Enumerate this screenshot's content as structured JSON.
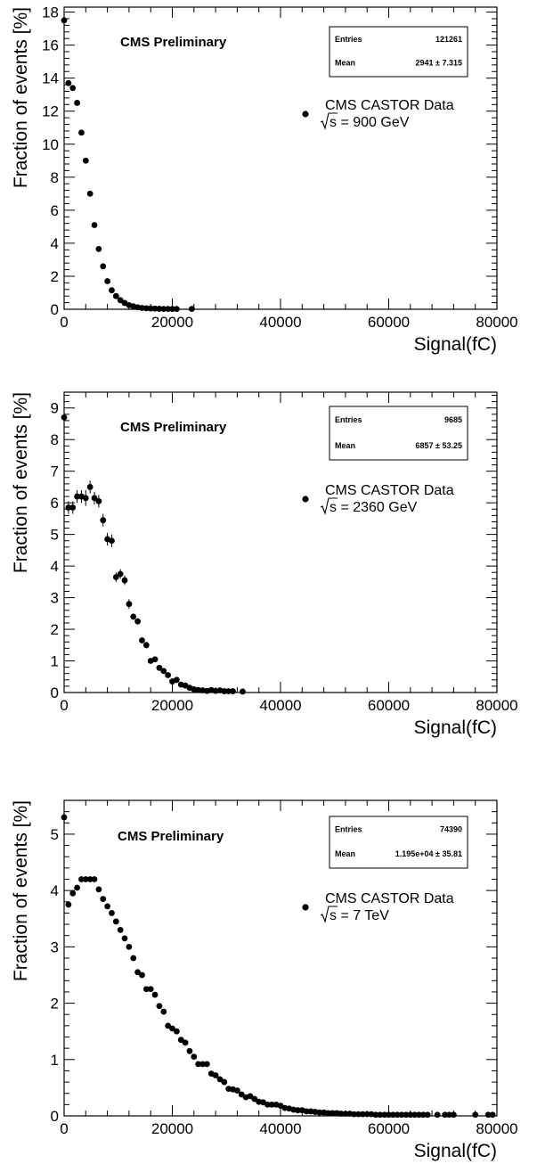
{
  "chart_data": [
    {
      "type": "scatter",
      "annotation": "CMS Preliminary",
      "xlabel": "Signal(fC)",
      "ylabel": "Fraction of events [%]",
      "xlim": [
        0,
        80000
      ],
      "ylim": [
        0,
        18.3
      ],
      "x_ticks": [
        0,
        20000,
        40000,
        60000,
        80000
      ],
      "y_ticks": [
        0,
        2,
        4,
        6,
        8,
        10,
        12,
        14,
        16,
        18
      ],
      "stats": {
        "entries_label": "Entries",
        "entries": "121261",
        "mean_label": "Mean",
        "mean": "2941 ±  7.315"
      },
      "legend": {
        "series_name": "CMS CASTOR Data",
        "energy": "s = 900 GeV",
        "placement": "right"
      },
      "series": [
        {
          "x": [
            0,
            800,
            1600,
            2400,
            3200,
            4000,
            4800,
            5600,
            6400,
            7200,
            8000,
            8800,
            9600,
            10400,
            11200,
            12000,
            12800,
            13600,
            14400,
            15200,
            16000,
            16800,
            17600,
            18400,
            19200,
            20000,
            20800,
            23600
          ],
          "y": [
            17.5,
            13.7,
            13.4,
            12.5,
            10.7,
            9.0,
            7.0,
            5.1,
            3.65,
            2.6,
            1.7,
            1.15,
            0.8,
            0.55,
            0.38,
            0.25,
            0.18,
            0.12,
            0.08,
            0.06,
            0.05,
            0.04,
            0.03,
            0.02,
            0.02,
            0.02,
            0.02,
            0.02
          ]
        }
      ]
    },
    {
      "type": "scatter",
      "annotation": "CMS Preliminary",
      "xlabel": "Signal(fC)",
      "ylabel": "Fraction of events [%]",
      "xlim": [
        0,
        80000
      ],
      "ylim": [
        0,
        9.5
      ],
      "x_ticks": [
        0,
        20000,
        40000,
        60000,
        80000
      ],
      "y_ticks": [
        0,
        1,
        2,
        3,
        4,
        5,
        6,
        7,
        8,
        9
      ],
      "stats": {
        "entries_label": "Entries",
        "entries": "9685",
        "mean_label": "Mean",
        "mean": "6857 ±  53.25"
      },
      "legend": {
        "series_name": "CMS CASTOR Data",
        "energy": "s = 2360 GeV",
        "placement": "right"
      },
      "series": [
        {
          "x": [
            0,
            800,
            1600,
            2400,
            3200,
            4000,
            4800,
            5600,
            6400,
            7200,
            8000,
            8800,
            9600,
            10400,
            11200,
            12000,
            12800,
            13600,
            14400,
            15200,
            16000,
            16800,
            17600,
            18400,
            19200,
            20000,
            20800,
            21600,
            22400,
            23200,
            24000,
            24800,
            25600,
            26400,
            27200,
            28000,
            28800,
            29600,
            30400,
            31200,
            33000
          ],
          "y": [
            8.7,
            5.85,
            5.85,
            6.2,
            6.2,
            6.15,
            6.5,
            6.15,
            6.05,
            5.45,
            4.85,
            4.8,
            3.65,
            3.75,
            3.55,
            2.8,
            2.4,
            2.25,
            1.65,
            1.5,
            1.0,
            1.05,
            0.78,
            0.68,
            0.55,
            0.35,
            0.4,
            0.25,
            0.22,
            0.15,
            0.1,
            0.08,
            0.07,
            0.05,
            0.08,
            0.05,
            0.07,
            0.04,
            0.04,
            0.04,
            0.03
          ],
          "errors": [
            0.3,
            0.2,
            0.2,
            0.2,
            0.2,
            0.25,
            0.2,
            0.2,
            0.2,
            0.2,
            0.2,
            0.2,
            0.15,
            0.15,
            0.15,
            0.15,
            0.1,
            0.1,
            0.1,
            0.1,
            0.08,
            0.08,
            0.06,
            0.06,
            0.05,
            0.05,
            0.05,
            0.04,
            0.04,
            0.04,
            0.03,
            0.03,
            0.03,
            0.03,
            0.03,
            0.03,
            0.03,
            0.02,
            0.02,
            0.02,
            0.02
          ]
        }
      ]
    },
    {
      "type": "scatter",
      "annotation": "CMS Preliminary",
      "xlabel": "Signal(fC)",
      "ylabel": "Fraction of events [%]",
      "xlim": [
        0,
        80000
      ],
      "ylim": [
        0,
        5.6
      ],
      "x_ticks": [
        0,
        20000,
        40000,
        60000,
        80000
      ],
      "y_ticks": [
        0,
        1,
        2,
        3,
        4,
        5
      ],
      "stats": {
        "entries_label": "Entries",
        "entries": "74390",
        "mean_label": "Mean",
        "mean": "1.195e+04 ±  35.81"
      },
      "legend": {
        "series_name": "CMS CASTOR Data",
        "energy": "s = 7 TeV",
        "placement": "right"
      },
      "series": [
        {
          "x": [
            0,
            800,
            1600,
            2400,
            3200,
            4000,
            4800,
            5600,
            6400,
            7200,
            8000,
            8800,
            9600,
            10400,
            11200,
            12000,
            12800,
            13600,
            14400,
            15200,
            16000,
            16800,
            17600,
            18400,
            19200,
            20000,
            20800,
            21600,
            22400,
            23200,
            24000,
            24800,
            25600,
            26400,
            27200,
            28000,
            28800,
            29600,
            30400,
            31200,
            32000,
            32800,
            33600,
            34400,
            35200,
            36000,
            36800,
            37600,
            38400,
            39200,
            40000,
            40800,
            41600,
            42400,
            43200,
            44000,
            44800,
            45600,
            46400,
            47200,
            48000,
            48800,
            49600,
            50400,
            51200,
            52000,
            52800,
            53600,
            54400,
            55200,
            56000,
            56800,
            57600,
            58400,
            59200,
            60000,
            60800,
            61600,
            62400,
            63200,
            64000,
            64800,
            65600,
            66400,
            67200,
            69000,
            70400,
            71200,
            72000,
            76000,
            78400,
            79200
          ],
          "y": [
            5.3,
            3.75,
            3.95,
            4.05,
            4.2,
            4.2,
            4.2,
            4.2,
            4.02,
            3.85,
            3.72,
            3.6,
            3.45,
            3.3,
            3.15,
            3.0,
            2.8,
            2.55,
            2.5,
            2.25,
            2.25,
            2.15,
            1.95,
            1.85,
            1.6,
            1.55,
            1.5,
            1.35,
            1.3,
            1.15,
            1.05,
            0.92,
            0.92,
            0.92,
            0.75,
            0.72,
            0.65,
            0.6,
            0.48,
            0.47,
            0.45,
            0.38,
            0.33,
            0.35,
            0.3,
            0.25,
            0.24,
            0.2,
            0.2,
            0.2,
            0.18,
            0.14,
            0.13,
            0.11,
            0.1,
            0.1,
            0.08,
            0.08,
            0.07,
            0.06,
            0.06,
            0.05,
            0.05,
            0.05,
            0.04,
            0.04,
            0.04,
            0.03,
            0.03,
            0.03,
            0.03,
            0.03,
            0.02,
            0.02,
            0.02,
            0.02,
            0.02,
            0.02,
            0.02,
            0.02,
            0.02,
            0.02,
            0.02,
            0.02,
            0.02,
            0.02,
            0.02,
            0.02,
            0.02,
            0.02,
            0.02,
            0.02
          ]
        }
      ]
    }
  ]
}
